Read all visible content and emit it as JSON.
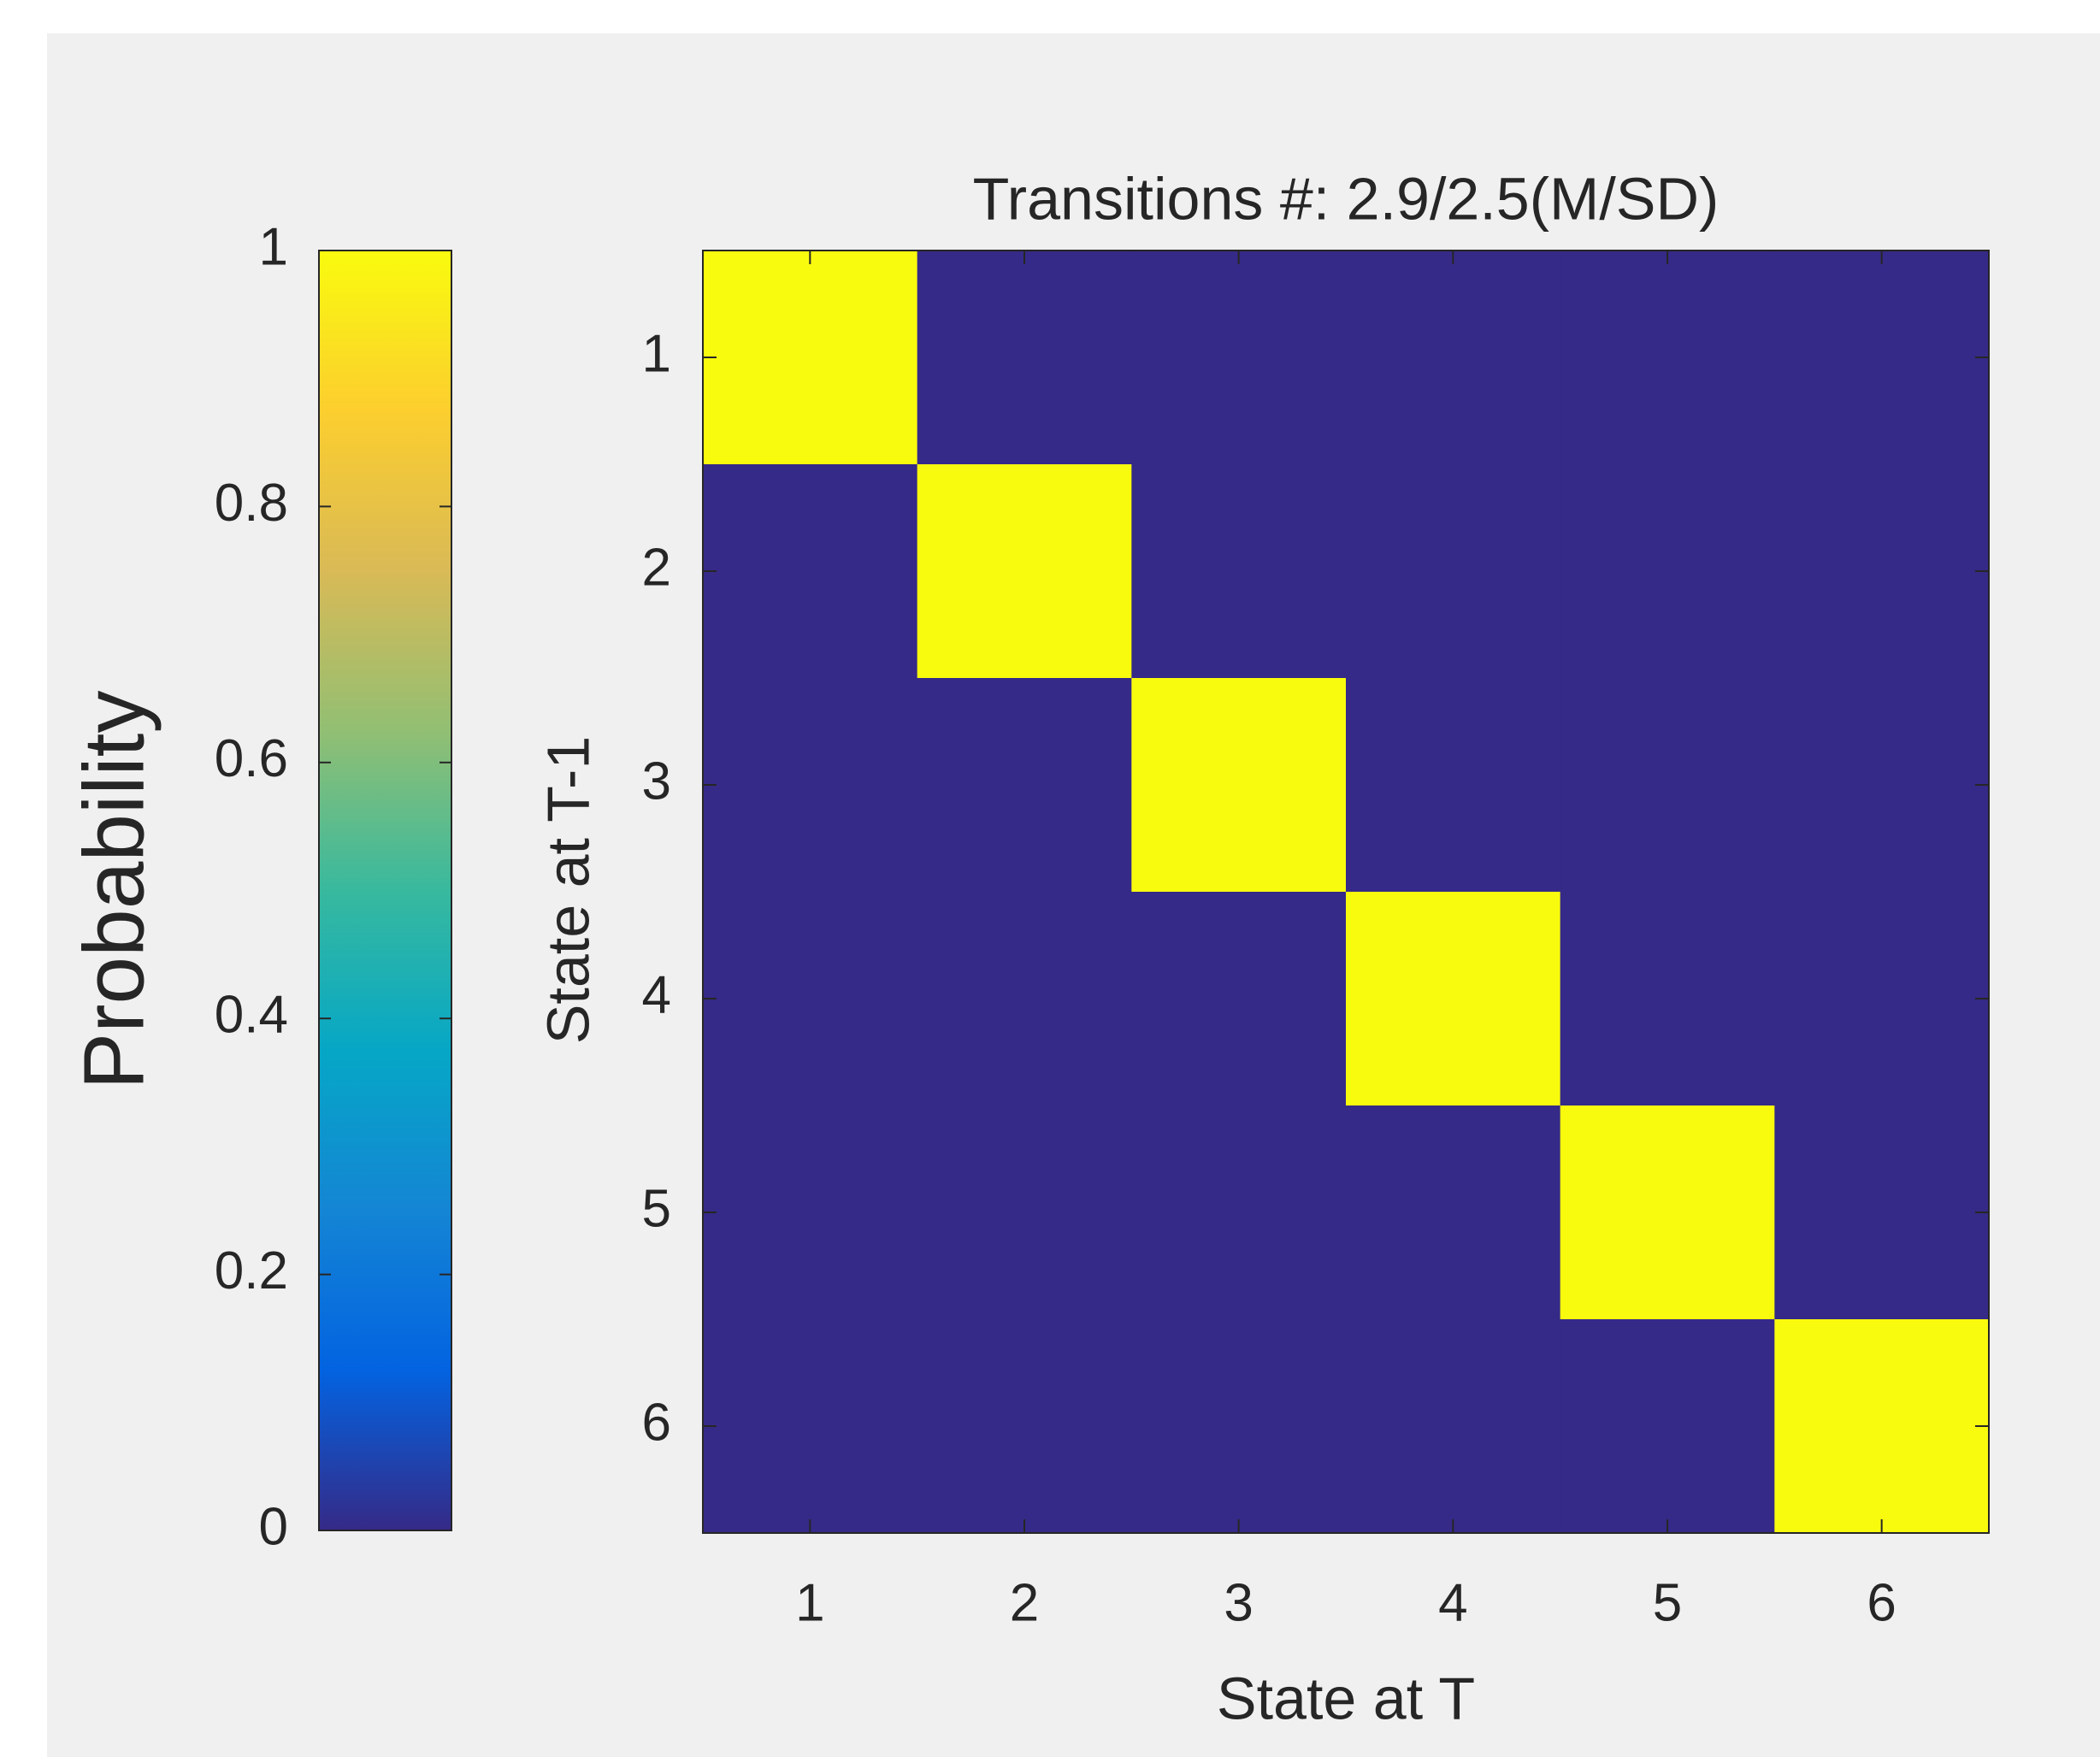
{
  "chart_data": {
    "type": "heatmap",
    "title": "Transitions #: 2.9/2.5(M/SD)",
    "x_label": "State at T",
    "y_label": "State at T-1",
    "x": [
      1,
      2,
      3,
      4,
      5,
      6
    ],
    "y": [
      1,
      2,
      3,
      4,
      5,
      6
    ],
    "z": [
      [
        1,
        0,
        0,
        0,
        0,
        0
      ],
      [
        0,
        1,
        0,
        0,
        0,
        0
      ],
      [
        0,
        0,
        1,
        0,
        0,
        0
      ],
      [
        0,
        0,
        0,
        1,
        0,
        0
      ],
      [
        0,
        0,
        0,
        0,
        1,
        0
      ],
      [
        0,
        0,
        0,
        0,
        0,
        1
      ]
    ],
    "colorbar_label": "Probability",
    "clim": [
      0,
      1
    ],
    "cticks": [
      0,
      0.2,
      0.4,
      0.6,
      0.8,
      1
    ],
    "colormap": [
      "#352a87",
      "#0363e1",
      "#1485d4",
      "#06a7c6",
      "#38b99e",
      "#92bf73",
      "#d9ba56",
      "#fcce2e",
      "#f9fb0e"
    ]
  }
}
